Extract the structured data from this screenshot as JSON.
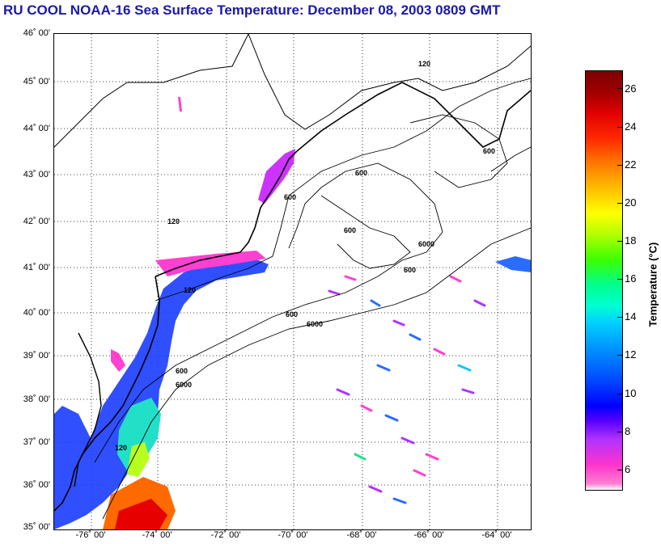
{
  "title": "RU COOL  NOAA-16  Sea Surface Temperature:  December 08, 2003 0809 GMT",
  "latitude_labels": [
    "46˚ 00'",
    "45˚ 00'",
    "44˚ 00'",
    "43˚ 00'",
    "42˚ 00'",
    "41˚ 00'",
    "40˚ 00'",
    "39˚ 00'",
    "38˚ 00'",
    "37˚ 00'",
    "36˚ 00'",
    "35˚ 00'"
  ],
  "longitude_labels": [
    "-76˚ 00'",
    "-74˚ 00'",
    "-72˚ 00'",
    "-70˚ 00'",
    "-68˚ 00'",
    "-66˚ 00'",
    "-64˚ 00'"
  ],
  "latitude_range": [
    35,
    46
  ],
  "longitude_range": [
    -77,
    -64.2
  ],
  "isobath_labels": [
    "120",
    "600",
    "6000"
  ],
  "colorbar": {
    "label": "Temperature (°C)",
    "ticks": [
      "26",
      "24",
      "22",
      "20",
      "18",
      "16",
      "14",
      "12",
      "10",
      "8",
      "6"
    ],
    "range": [
      5,
      27
    ]
  },
  "colors": {
    "title": "#1a1aa6",
    "frame": "#000000",
    "land_coast": "#000000",
    "isobath": "#000000",
    "grid": "#000000"
  }
}
